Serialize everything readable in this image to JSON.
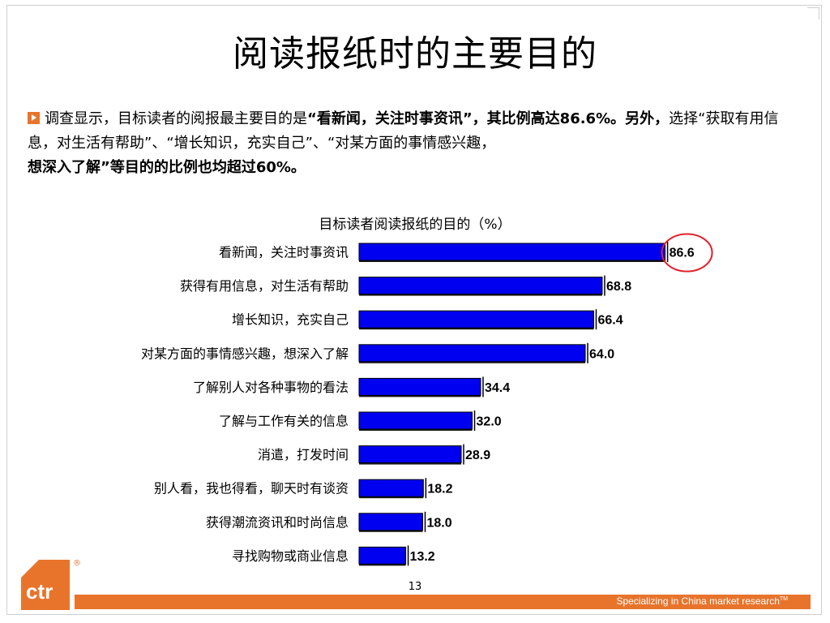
{
  "page": {
    "title": "阅读报纸时的主要目的",
    "page_number": "13",
    "footer_tagline": "Specializing in China market research",
    "footer_tm": "TM",
    "logo_text": "ctr",
    "logo_reg": "®"
  },
  "intro": {
    "s1": "调查显示，目标读者的阅报最主要目的是",
    "s2": "“看新闻，关注时事资讯”，",
    "s3": "其比例高达86.6%。另外，",
    "s4": "选择“获取有用信息，对生活有帮助”",
    "s5": "、“增长知识，充实自己”、“对某方面的事情感兴趣，",
    "s6": "想深入了解”等目的的比例也均超过60%。"
  },
  "colors": {
    "bar": "#0000f0",
    "accent": "#e8742c",
    "highlight_circle": "#e0202a"
  },
  "chart_data": {
    "type": "bar",
    "orientation": "horizontal",
    "title": "目标读者阅读报纸的目的（%）",
    "categories": [
      "看新闻，关注时事资讯",
      "获得有用信息，对生活有帮助",
      "增长知识，充实自己",
      "对某方面的事情感兴趣，想深入了解",
      "了解别人对各种事物的看法",
      "了解与工作有关的信息",
      "消遣，打发时间",
      "别人看，我也得看，聊天时有谈资",
      "获得潮流资讯和时尚信息",
      "寻找购物或商业信息"
    ],
    "values": [
      86.6,
      68.8,
      66.4,
      64.0,
      34.4,
      32.0,
      28.9,
      18.2,
      18.0,
      13.2
    ],
    "value_labels": [
      "86.6",
      "68.8",
      "66.4",
      "64.0",
      "34.4",
      "32.0",
      "28.9",
      "18.2",
      "18.0",
      "13.2"
    ],
    "highlighted": "86.6",
    "grid": false,
    "legend": "none"
  }
}
